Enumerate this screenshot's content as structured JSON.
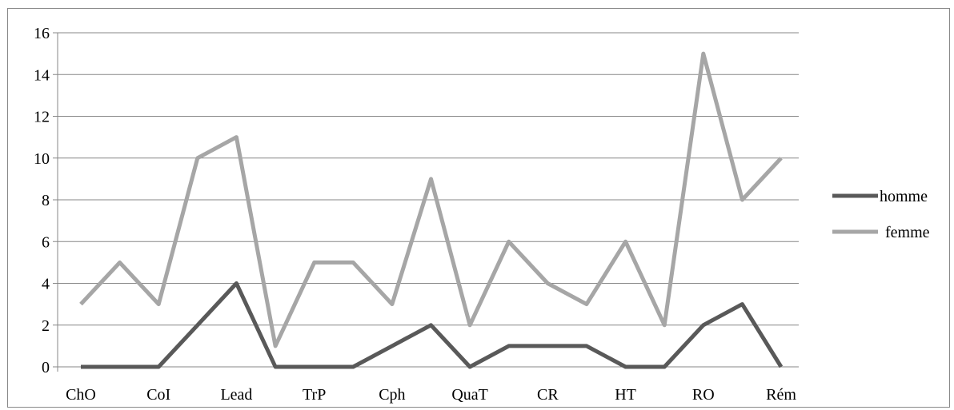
{
  "chart_data": {
    "type": "line",
    "title": "",
    "xlabel": "",
    "ylabel": "",
    "ylim": [
      0,
      16
    ],
    "yticks": [
      0,
      2,
      4,
      6,
      8,
      10,
      12,
      14,
      16
    ],
    "grid": true,
    "legend_position": "right",
    "x_tick_labels": [
      "ChO",
      "CoI",
      "Lead",
      "TrP",
      "Cph",
      "QuaT",
      "CR",
      "HT",
      "RO",
      "Rém"
    ],
    "point_count": 19,
    "series": [
      {
        "name": "homme",
        "color": "#595959",
        "values": [
          0,
          0,
          0,
          2,
          4,
          0,
          0,
          0,
          1,
          2,
          0,
          1,
          1,
          1,
          0,
          0,
          2,
          3,
          0
        ]
      },
      {
        "name": "femme",
        "color": "#a6a6a6",
        "values": [
          3,
          5,
          3,
          10,
          11,
          1,
          5,
          5,
          3,
          9,
          2,
          6,
          4,
          3,
          6,
          2,
          15,
          8,
          10
        ]
      }
    ]
  }
}
